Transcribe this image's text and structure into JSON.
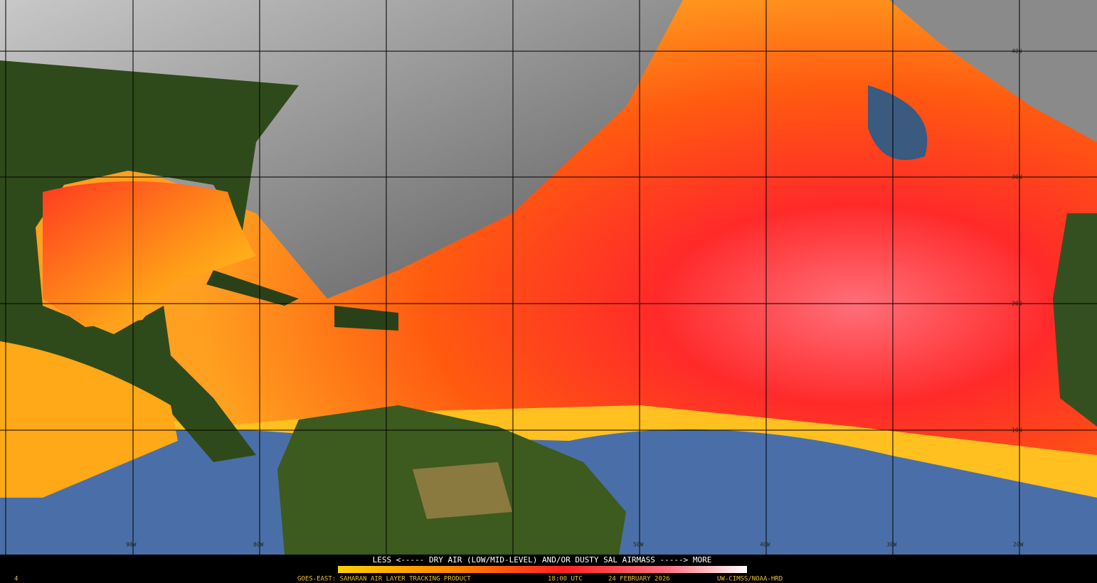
{
  "map": {
    "lat_labels": [
      "40N",
      "30N",
      "20N",
      "10N"
    ],
    "lon_labels": [
      "90W",
      "80W",
      "50W",
      "40W",
      "30W",
      "20W"
    ]
  },
  "colorbar": {
    "caption": "LESS <----- DRY AIR (LOW/MID-LEVEL) AND/OR DUSTY SAL AIRMASS -----> MORE"
  },
  "footer": {
    "frame": "4",
    "product": "GOES-EAST: SAHARAN AIR LAYER TRACKING PRODUCT",
    "time": "18:00 UTC",
    "date": "24 FEBRUARY 2026",
    "credit": "UW-CIMSS/NOAA-HRD"
  }
}
